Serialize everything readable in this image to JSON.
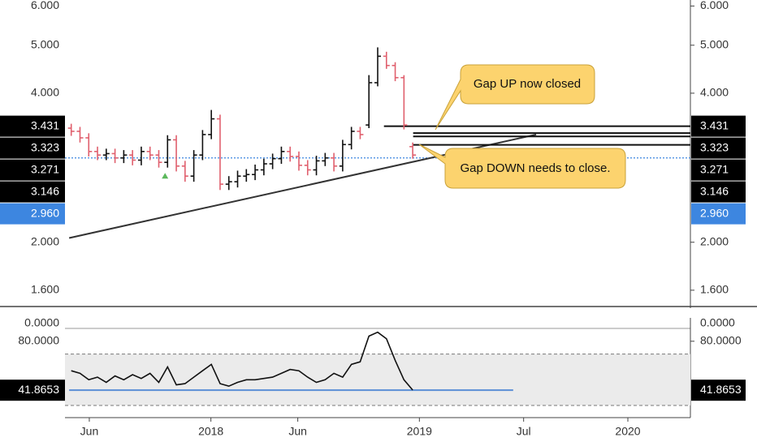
{
  "chart_data": [
    {
      "type": "ohlc",
      "x": [
        2017.33,
        2017.372,
        2017.414,
        2017.456,
        2017.498,
        2017.54,
        2017.582,
        2017.624,
        2017.666,
        2017.708,
        2017.75,
        2017.792,
        2017.834,
        2017.876,
        2017.918,
        2017.96,
        2018.002,
        2018.044,
        2018.086,
        2018.128,
        2018.17,
        2018.212,
        2018.254,
        2018.296,
        2018.338,
        2018.38,
        2018.422,
        2018.464,
        2018.506,
        2018.548,
        2018.59,
        2018.632,
        2018.674,
        2018.716,
        2018.758,
        2018.8,
        2018.842,
        2018.884,
        2018.926,
        2018.968
      ],
      "open": [
        3.4,
        3.35,
        3.25,
        3.05,
        3.0,
        3.02,
        2.96,
        3.0,
        2.93,
        3.05,
        3.0,
        2.9,
        3.22,
        2.85,
        2.72,
        3.0,
        3.3,
        3.55,
        2.62,
        2.65,
        2.72,
        2.74,
        2.8,
        2.88,
        2.95,
        3.05,
        2.98,
        2.86,
        2.8,
        2.92,
        2.96,
        2.85,
        3.15,
        3.35,
        3.45,
        4.2,
        4.75,
        4.55,
        4.3,
        3.12
      ],
      "high": [
        3.47,
        3.42,
        3.32,
        3.12,
        3.09,
        3.09,
        3.07,
        3.07,
        3.12,
        3.12,
        3.07,
        3.29,
        3.29,
        2.92,
        3.07,
        3.37,
        3.7,
        3.62,
        2.72,
        2.79,
        2.81,
        2.87,
        2.95,
        3.02,
        3.12,
        3.12,
        3.05,
        2.93,
        2.99,
        3.03,
        3.03,
        3.22,
        3.42,
        3.42,
        4.35,
        4.95,
        4.85,
        4.62,
        4.35,
        3.18
      ],
      "low": [
        3.28,
        3.18,
        2.98,
        2.93,
        2.93,
        2.89,
        2.89,
        2.86,
        2.86,
        2.93,
        2.83,
        2.83,
        2.78,
        2.65,
        2.65,
        2.93,
        3.23,
        2.55,
        2.55,
        2.58,
        2.65,
        2.67,
        2.73,
        2.81,
        2.88,
        2.91,
        2.79,
        2.73,
        2.73,
        2.85,
        2.78,
        2.78,
        3.08,
        3.23,
        3.4,
        4.13,
        4.48,
        4.23,
        3.38,
        2.95
      ],
      "close": [
        3.35,
        3.25,
        3.05,
        3.0,
        3.02,
        2.96,
        3.0,
        2.93,
        3.05,
        3.0,
        2.9,
        3.22,
        2.85,
        2.72,
        3.0,
        3.3,
        3.55,
        2.62,
        2.65,
        2.72,
        2.74,
        2.8,
        2.88,
        2.95,
        3.05,
        2.98,
        2.86,
        2.8,
        2.92,
        2.96,
        2.85,
        3.15,
        3.35,
        3.3,
        4.2,
        4.75,
        4.55,
        4.3,
        3.45,
        3.0
      ],
      "up_color": "#111111",
      "down_color": "#e0606e",
      "log_scale": true,
      "ylim": [
        1.5,
        6.17
      ],
      "yticks": [
        {
          "value": 6,
          "label": "6.000"
        },
        {
          "value": 5,
          "label": "5.000"
        },
        {
          "value": 4,
          "label": "4.000"
        },
        {
          "value": 2,
          "label": "2.000"
        },
        {
          "value": 1.6,
          "label": "1.600"
        }
      ],
      "xlim": [
        2017.3,
        2020.3
      ],
      "xticks": [
        {
          "value": 2017.4167,
          "label": "Jun"
        },
        {
          "value": 2018,
          "label": "2018"
        },
        {
          "value": 2018.4167,
          "label": "Jun"
        },
        {
          "value": 2019,
          "label": "2019"
        },
        {
          "value": 2019.5,
          "label": "Jul"
        },
        {
          "value": 2020,
          "label": "2020"
        }
      ],
      "price_labels": [
        {
          "value": 3.431,
          "label": "3.431",
          "color": "#000000"
        },
        {
          "value": 3.323,
          "label": "3.323",
          "color": "#000000"
        },
        {
          "value": 3.271,
          "label": "3.271",
          "color": "#000000"
        },
        {
          "value": 3.146,
          "label": "3.146",
          "color": "#000000"
        },
        {
          "value": 2.96,
          "label": "2.960",
          "color": "#3d86e0"
        }
      ],
      "levels": [
        {
          "value": 3.431,
          "x": 2018.83
        },
        {
          "value": 3.323,
          "x": 2018.97
        },
        {
          "value": 3.271,
          "x": 2018.97
        },
        {
          "value": 3.146,
          "x": 2018.97
        }
      ],
      "trendline": {
        "x": [
          2017.32,
          2019.56
        ],
        "values": [
          2.04,
          3.3
        ]
      },
      "signal": {
        "x": 2017.78,
        "value": 2.73,
        "color": "#5cb85c"
      },
      "annotations": [
        "Gap UP now closed",
        "Gap DOWN needs to close."
      ]
    },
    {
      "type": "line",
      "x": [
        2017.33,
        2017.372,
        2017.414,
        2017.456,
        2017.498,
        2017.54,
        2017.582,
        2017.624,
        2017.666,
        2017.708,
        2017.75,
        2017.792,
        2017.834,
        2017.876,
        2017.918,
        2017.96,
        2018.002,
        2018.044,
        2018.086,
        2018.128,
        2018.17,
        2018.212,
        2018.254,
        2018.296,
        2018.338,
        2018.38,
        2018.422,
        2018.464,
        2018.506,
        2018.548,
        2018.59,
        2018.632,
        2018.674,
        2018.716,
        2018.758,
        2018.8,
        2018.842,
        2018.884,
        2018.926,
        2018.968
      ],
      "values": [
        57,
        55,
        50,
        52,
        48,
        53,
        50,
        54,
        51,
        55,
        48,
        60,
        46,
        47,
        52,
        57,
        62,
        47,
        45,
        48,
        50,
        50,
        51,
        52,
        55,
        58,
        57,
        52,
        48,
        50,
        55,
        52,
        62,
        64,
        84,
        87,
        82,
        65,
        50,
        42
      ],
      "color": "#111111",
      "ylim": [
        20.5,
        90
      ],
      "yticks": [
        {
          "value": 80,
          "label": "80.0000"
        }
      ],
      "band": [
        30,
        70
      ],
      "level": {
        "value": 41.8653,
        "label": "41.8653",
        "x": [
          2017.32,
          2019.45
        ],
        "color": "#5b8fd6"
      },
      "clipped_label": "0.0000"
    }
  ]
}
